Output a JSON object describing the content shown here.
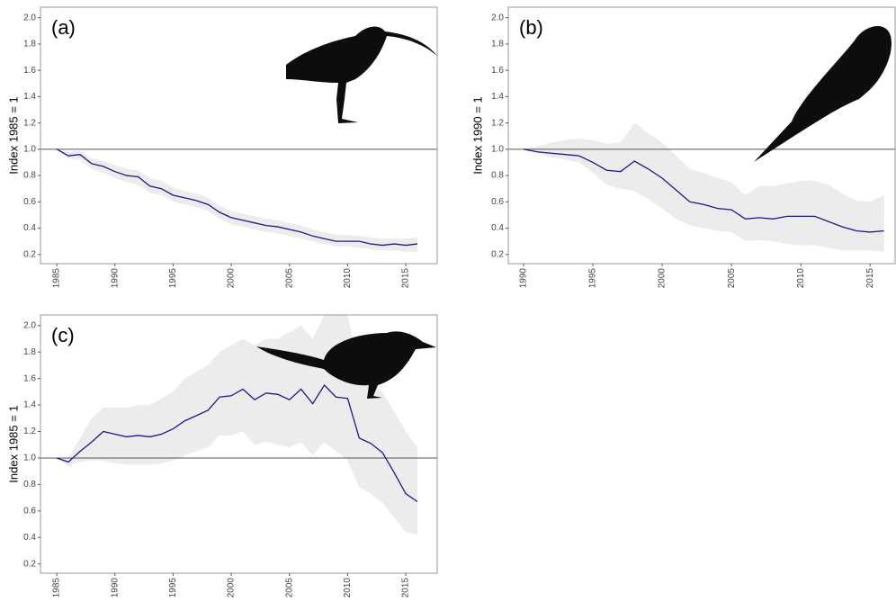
{
  "chart_data": [
    {
      "type": "line",
      "label": "(a)",
      "ylabel": "Index 1985 = 1",
      "hline": 1,
      "x": [
        1985,
        1986,
        1987,
        1988,
        1989,
        1990,
        1991,
        1992,
        1993,
        1994,
        1995,
        1996,
        1997,
        1998,
        1999,
        2000,
        2001,
        2002,
        2003,
        2004,
        2005,
        2006,
        2007,
        2008,
        2009,
        2010,
        2011,
        2012,
        2013,
        2014,
        2015,
        2016
      ],
      "series": [
        {
          "color": "#1a1a8c",
          "band_color": "#ececec",
          "values": [
            1.0,
            0.95,
            0.96,
            0.89,
            0.87,
            0.83,
            0.8,
            0.79,
            0.72,
            0.7,
            0.65,
            0.63,
            0.61,
            0.58,
            0.52,
            0.48,
            0.46,
            0.44,
            0.42,
            0.41,
            0.39,
            0.37,
            0.34,
            0.32,
            0.3,
            0.3,
            0.3,
            0.28,
            0.27,
            0.28,
            0.27,
            0.28
          ],
          "lower": [
            1.0,
            0.93,
            0.92,
            0.85,
            0.82,
            0.78,
            0.75,
            0.73,
            0.67,
            0.65,
            0.6,
            0.58,
            0.56,
            0.53,
            0.47,
            0.43,
            0.41,
            0.39,
            0.37,
            0.36,
            0.34,
            0.32,
            0.3,
            0.28,
            0.26,
            0.26,
            0.25,
            0.24,
            0.23,
            0.23,
            0.22,
            0.22
          ],
          "upper": [
            1.0,
            0.98,
            0.99,
            0.93,
            0.91,
            0.88,
            0.85,
            0.84,
            0.78,
            0.76,
            0.71,
            0.68,
            0.66,
            0.63,
            0.57,
            0.53,
            0.51,
            0.49,
            0.47,
            0.46,
            0.44,
            0.42,
            0.39,
            0.37,
            0.35,
            0.35,
            0.34,
            0.33,
            0.32,
            0.32,
            0.32,
            0.33
          ]
        }
      ],
      "xlim": [
        1983.6,
        2017.7
      ],
      "ylim": [
        0.13,
        2.08
      ],
      "xticks": [
        1985,
        1990,
        1995,
        2000,
        2005,
        2010,
        2015
      ],
      "yticks": [
        0.2,
        0.4,
        0.6,
        0.8,
        {
          "value": 1,
          "label": "1.0"
        },
        1.2,
        1.4,
        1.6,
        1.8,
        {
          "value": 2,
          "label": "2.0"
        }
      ]
    },
    {
      "type": "line",
      "label": "(b)",
      "ylabel": "Index 1990 = 1",
      "hline": 1,
      "x": [
        1990,
        1991,
        1992,
        1993,
        1994,
        1995,
        1996,
        1997,
        1998,
        1999,
        2000,
        2001,
        2002,
        2003,
        2004,
        2005,
        2006,
        2007,
        2008,
        2009,
        2010,
        2011,
        2012,
        2013,
        2014,
        2015,
        2016
      ],
      "series": [
        {
          "color": "#1a1a8c",
          "band_color": "#ececec",
          "values": [
            1.0,
            0.98,
            0.97,
            0.96,
            0.95,
            0.9,
            0.84,
            0.83,
            0.91,
            0.85,
            0.78,
            0.69,
            0.6,
            0.58,
            0.55,
            0.54,
            0.47,
            0.48,
            0.47,
            0.49,
            0.49,
            0.49,
            0.45,
            0.41,
            0.38,
            0.37,
            0.38
          ],
          "lower": [
            1.0,
            0.97,
            0.94,
            0.92,
            0.9,
            0.82,
            0.73,
            0.7,
            0.68,
            0.62,
            0.55,
            0.47,
            0.42,
            0.4,
            0.38,
            0.37,
            0.3,
            0.31,
            0.3,
            0.28,
            0.27,
            0.27,
            0.25,
            0.23,
            0.23,
            0.23,
            0.22
          ],
          "upper": [
            1.0,
            1.02,
            1.05,
            1.07,
            1.08,
            1.07,
            1.04,
            1.05,
            1.2,
            1.12,
            1.05,
            0.95,
            0.85,
            0.82,
            0.78,
            0.75,
            0.65,
            0.72,
            0.72,
            0.74,
            0.76,
            0.76,
            0.73,
            0.66,
            0.61,
            0.6,
            0.65
          ]
        }
      ],
      "xlim": [
        1988.9,
        2016.8
      ],
      "ylim": [
        0.13,
        2.08
      ],
      "xticks": [
        1990,
        1995,
        2000,
        2005,
        2010,
        2015
      ],
      "yticks": [
        0.2,
        0.4,
        0.6,
        0.8,
        {
          "value": 1,
          "label": "1.0"
        },
        1.2,
        1.4,
        1.6,
        1.8,
        {
          "value": 2,
          "label": "2.0"
        }
      ]
    },
    {
      "type": "line",
      "label": "(c)",
      "ylabel": "Index 1985 = 1",
      "hline": 1,
      "x": [
        1985,
        1986,
        1987,
        1988,
        1989,
        1990,
        1991,
        1992,
        1993,
        1994,
        1995,
        1996,
        1997,
        1998,
        1999,
        2000,
        2001,
        2002,
        2003,
        2004,
        2005,
        2006,
        2007,
        2008,
        2009,
        2010,
        2011,
        2012,
        2013,
        2014,
        2015,
        2016
      ],
      "series": [
        {
          "color": "#1a1a8c",
          "band_color": "#ececec",
          "values": [
            1.0,
            0.97,
            1.05,
            1.12,
            1.2,
            1.18,
            1.16,
            1.17,
            1.16,
            1.18,
            1.22,
            1.28,
            1.32,
            1.36,
            1.46,
            1.47,
            1.52,
            1.44,
            1.49,
            1.48,
            1.44,
            1.52,
            1.41,
            1.55,
            1.46,
            1.45,
            1.15,
            1.11,
            1.04,
            0.89,
            0.73,
            0.67
          ],
          "lower": [
            1.0,
            0.94,
            0.97,
            0.98,
            0.98,
            0.96,
            0.95,
            0.95,
            0.95,
            0.96,
            0.98,
            1.02,
            1.05,
            1.08,
            1.17,
            1.17,
            1.2,
            1.1,
            1.12,
            1.1,
            1.08,
            1.12,
            1.02,
            1.12,
            1.05,
            0.98,
            0.78,
            0.73,
            0.66,
            0.55,
            0.44,
            0.42
          ],
          "upper": [
            1.0,
            1.0,
            1.15,
            1.3,
            1.38,
            1.38,
            1.38,
            1.4,
            1.4,
            1.45,
            1.5,
            1.6,
            1.65,
            1.7,
            1.8,
            1.85,
            1.9,
            1.85,
            1.9,
            1.9,
            1.95,
            2.0,
            1.9,
            2.08,
            2.08,
            2.08,
            1.65,
            1.55,
            1.5,
            1.35,
            1.2,
            1.08
          ]
        }
      ],
      "xlim": [
        1983.6,
        2017.7
      ],
      "ylim": [
        0.13,
        2.08
      ],
      "xticks": [
        1985,
        1990,
        1995,
        2000,
        2005,
        2010,
        2015
      ],
      "yticks": [
        0.2,
        0.4,
        0.6,
        0.8,
        {
          "value": 1,
          "label": "1.0"
        },
        1.2,
        1.4,
        1.6,
        1.8,
        {
          "value": 2,
          "label": "2.0"
        }
      ]
    }
  ]
}
